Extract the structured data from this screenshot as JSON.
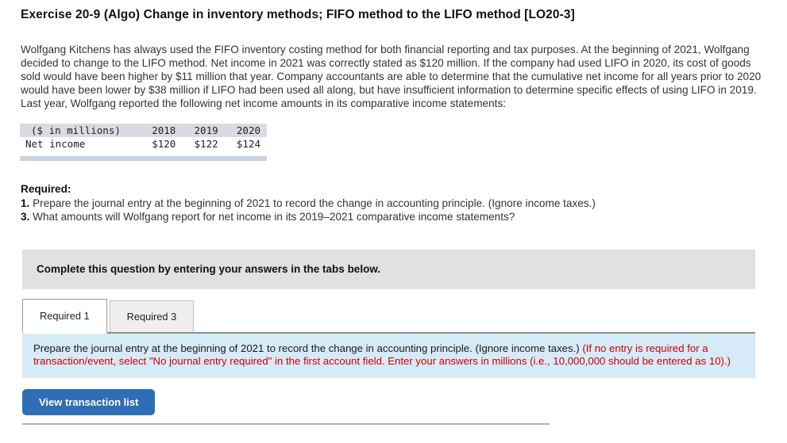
{
  "title": "Exercise 20-9 (Algo) Change in inventory methods; FIFO method to the LIFO method [LO20-3]",
  "intro": "Wolfgang Kitchens has always used the FIFO inventory costing method for both financial reporting and tax purposes. At the beginning of 2021, Wolfgang decided to change to the LIFO method. Net income in 2021 was correctly stated as $120 million. If the company had used LIFO in 2020, its cost of goods sold would have been higher by $11 million that year. Company accountants are able to determine that the cumulative net income for all years prior to 2020 would have been lower by $38 million if LIFO had been used all along, but have insufficient information to determine specific effects of using LIFO in 2019. Last year, Wolfgang reported the following net income amounts in its comparative income statements:",
  "income_table": {
    "header": {
      "label": "($ in millions)",
      "y2018": "2018",
      "y2019": "2019",
      "y2020": "2020"
    },
    "row": {
      "label": "Net income",
      "y2018": "$120",
      "y2019": "$122",
      "y2020": "$124"
    }
  },
  "required": {
    "heading": "Required:",
    "items": [
      {
        "num": "1.",
        "text": " Prepare the journal entry at the beginning of 2021 to record the change in accounting principle. (Ignore income taxes.)"
      },
      {
        "num": "3.",
        "text": " What amounts will Wolfgang report for net income in its 2019–2021 comparative income statements?"
      }
    ]
  },
  "banner_text": "Complete this question by entering your answers in the tabs below.",
  "tabs": [
    {
      "label": "Required 1",
      "active": true
    },
    {
      "label": "Required 3",
      "active": false
    }
  ],
  "tab_panel": {
    "text_black": "Prepare the journal entry at the beginning of 2021 to record the change in accounting principle. (Ignore income taxes.) ",
    "text_red": "(If no entry is required for a transaction/event, select \"No journal entry required\" in the first account field. Enter your answers in millions (i.e., 10,000,000 should be entered as 10).)"
  },
  "buttons": {
    "view_transaction_list": "View transaction list"
  },
  "colors": {
    "panel_bg": "#d7eaf8",
    "banner_bg": "#e1e1e1",
    "table_header_bg": "#d9dbe2",
    "table_bottom_bar": "#c9d3e2",
    "button_bg": "#2e6eb5",
    "red_text": "#cc0000"
  }
}
